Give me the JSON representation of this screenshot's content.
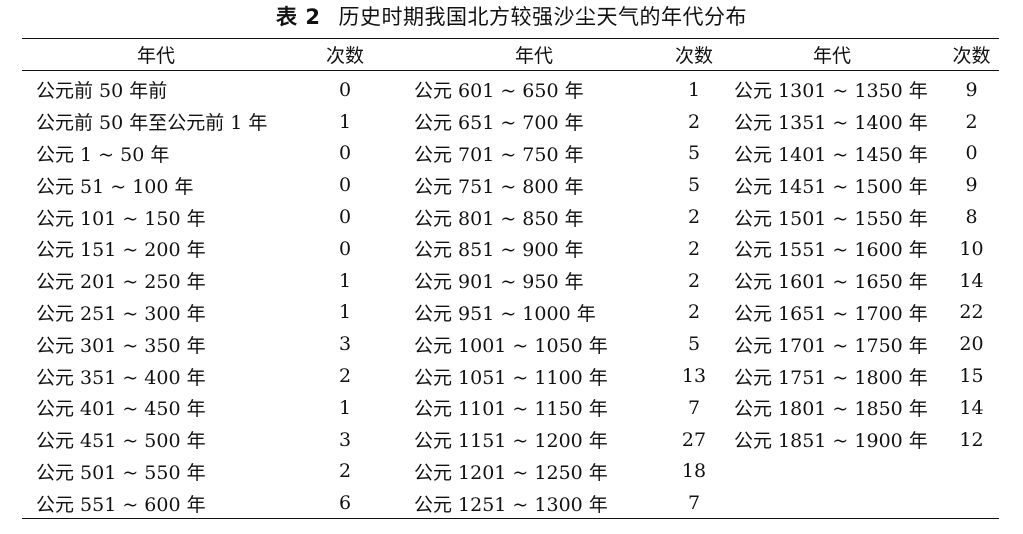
{
  "caption": {
    "label": "表 2",
    "title": "历史时期我国北方较强沙尘天气的年代分布"
  },
  "table": {
    "headers": [
      "年代",
      "次数",
      "年代",
      "次数",
      "年代",
      "次数"
    ],
    "rows": [
      [
        {
          "period": "公元前 50 年前",
          "count": "0"
        },
        {
          "period": "公元 601 ~ 650 年",
          "count": "1"
        },
        {
          "period": "公元 1301 ~ 1350 年",
          "count": "9"
        }
      ],
      [
        {
          "period": "公元前 50 年至公元前 1 年",
          "count": "1"
        },
        {
          "period": "公元 651 ~ 700 年",
          "count": "2"
        },
        {
          "period": "公元 1351 ~ 1400 年",
          "count": "2"
        }
      ],
      [
        {
          "period": "公元 1 ~ 50 年",
          "count": "0"
        },
        {
          "period": "公元 701 ~ 750 年",
          "count": "5"
        },
        {
          "period": "公元 1401 ~ 1450 年",
          "count": "0"
        }
      ],
      [
        {
          "period": "公元 51 ~ 100 年",
          "count": "0"
        },
        {
          "period": "公元 751 ~ 800 年",
          "count": "5"
        },
        {
          "period": "公元 1451 ~ 1500 年",
          "count": "9"
        }
      ],
      [
        {
          "period": "公元 101 ~ 150 年",
          "count": "0"
        },
        {
          "period": "公元 801 ~ 850 年",
          "count": "2"
        },
        {
          "period": "公元 1501 ~ 1550 年",
          "count": "8"
        }
      ],
      [
        {
          "period": "公元 151 ~ 200 年",
          "count": "0"
        },
        {
          "period": "公元 851 ~ 900 年",
          "count": "2"
        },
        {
          "period": "公元 1551 ~ 1600 年",
          "count": "10"
        }
      ],
      [
        {
          "period": "公元 201 ~ 250 年",
          "count": "1"
        },
        {
          "period": "公元 901 ~ 950 年",
          "count": "2"
        },
        {
          "period": "公元 1601 ~ 1650 年",
          "count": "14"
        }
      ],
      [
        {
          "period": "公元 251 ~ 300 年",
          "count": "1"
        },
        {
          "period": "公元 951 ~ 1000 年",
          "count": "2"
        },
        {
          "period": "公元 1651 ~ 1700 年",
          "count": "22"
        }
      ],
      [
        {
          "period": "公元 301 ~ 350 年",
          "count": "3"
        },
        {
          "period": "公元 1001 ~ 1050 年",
          "count": "5"
        },
        {
          "period": "公元 1701 ~ 1750 年",
          "count": "20"
        }
      ],
      [
        {
          "period": "公元 351 ~ 400 年",
          "count": "2"
        },
        {
          "period": "公元 1051 ~ 1100 年",
          "count": "13"
        },
        {
          "period": "公元 1751 ~ 1800 年",
          "count": "15"
        }
      ],
      [
        {
          "period": "公元 401 ~ 450 年",
          "count": "1"
        },
        {
          "period": "公元 1101 ~ 1150 年",
          "count": "7"
        },
        {
          "period": "公元 1801 ~ 1850 年",
          "count": "14"
        }
      ],
      [
        {
          "period": "公元 451 ~ 500 年",
          "count": "3"
        },
        {
          "period": "公元 1151 ~ 1200 年",
          "count": "27"
        },
        {
          "period": "公元 1851 ~ 1900 年",
          "count": "12"
        }
      ],
      [
        {
          "period": "公元 501 ~ 550 年",
          "count": "2"
        },
        {
          "period": "公元 1201 ~ 1250 年",
          "count": "18"
        },
        {
          "period": "",
          "count": ""
        }
      ],
      [
        {
          "period": "公元 551 ~ 600 年",
          "count": "6"
        },
        {
          "period": "公元 1251 ~ 1300 年",
          "count": "7"
        },
        {
          "period": "",
          "count": ""
        }
      ]
    ]
  }
}
